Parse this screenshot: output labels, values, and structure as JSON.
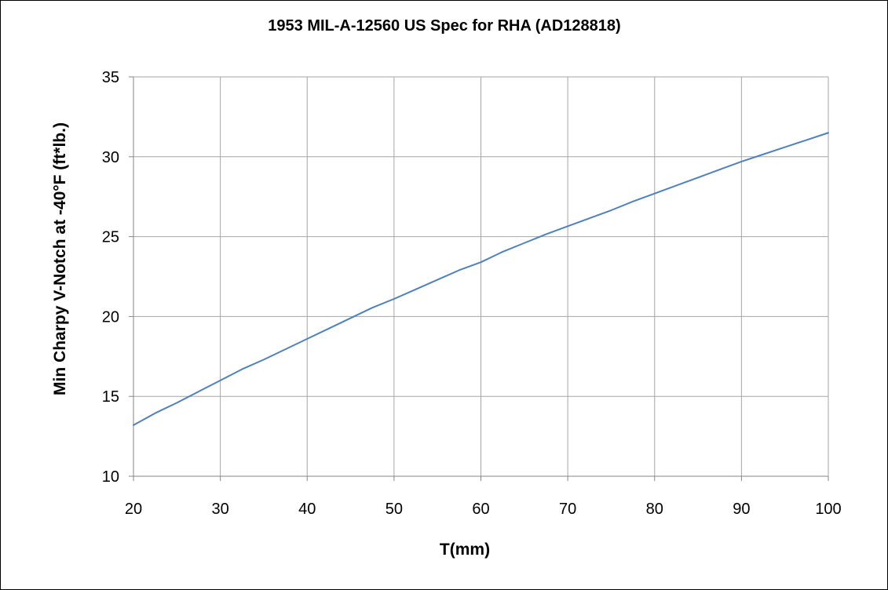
{
  "chart_data": {
    "type": "line",
    "title": "1953 MIL-A-12560 US Spec for RHA (AD128818)",
    "xlabel": "T(mm)",
    "ylabel": "Min Charpy V-Notch at -40°F (ft*lb.)",
    "xlim": [
      20,
      100
    ],
    "ylim": [
      10,
      35
    ],
    "x_ticks": [
      "20",
      "30",
      "40",
      "50",
      "60",
      "70",
      "80",
      "90",
      "100"
    ],
    "y_ticks": [
      "10",
      "15",
      "20",
      "25",
      "30",
      "35"
    ],
    "grid": true,
    "legend": "none",
    "series": [
      {
        "color": "#4f81bd",
        "x": [
          20,
          22.5,
          25,
          27.5,
          30,
          32.5,
          35,
          37.5,
          40,
          42.5,
          45,
          47.5,
          50,
          52.5,
          55,
          57.5,
          60,
          62.5,
          65,
          67.5,
          70,
          72.5,
          75,
          77.5,
          80,
          82.5,
          85,
          87.5,
          90,
          92.5,
          95,
          97.5,
          100
        ],
        "y": [
          13.2,
          13.95,
          14.6,
          15.3,
          16.0,
          16.7,
          17.3,
          17.95,
          18.6,
          19.25,
          19.9,
          20.55,
          21.1,
          21.7,
          22.3,
          22.9,
          23.4,
          24.05,
          24.6,
          25.15,
          25.65,
          26.15,
          26.65,
          27.2,
          27.7,
          28.2,
          28.7,
          29.2,
          29.7,
          30.15,
          30.6,
          31.05,
          31.5
        ]
      }
    ]
  }
}
